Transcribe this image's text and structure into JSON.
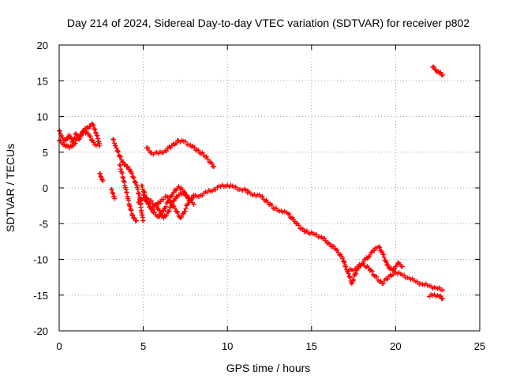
{
  "chart_data": {
    "type": "scatter",
    "title": "Day 214 of 2024, Sidereal Day-to-day VTEC variation (SDTVAR) for receiver p802",
    "xlabel": "GPS time / hours",
    "ylabel": "SDTVAR / TECUs",
    "xlim": [
      0,
      25
    ],
    "ylim": [
      -20,
      20
    ],
    "xticks": [
      0,
      5,
      10,
      15,
      20,
      25
    ],
    "yticks": [
      -20,
      -15,
      -10,
      -5,
      0,
      5,
      10,
      15,
      20
    ],
    "grid": true,
    "marker": "+",
    "color": "#ff0000",
    "series": [
      {
        "name": "main-track",
        "points": [
          [
            0,
            8.0
          ],
          [
            0.2,
            7.0
          ],
          [
            0.4,
            6.6
          ],
          [
            0.6,
            7.4
          ],
          [
            0.8,
            6.4
          ],
          [
            1.0,
            7.6
          ],
          [
            1.2,
            6.8
          ],
          [
            1.4,
            7.9
          ],
          [
            1.6,
            8.3
          ],
          [
            1.8,
            8.6
          ],
          [
            2.0,
            8.9
          ],
          [
            2.2,
            7.6
          ],
          [
            2.4,
            6.2
          ]
        ]
      },
      {
        "name": "track-2",
        "points": [
          [
            0,
            6.6
          ],
          [
            0.3,
            6.1
          ],
          [
            0.6,
            5.6
          ],
          [
            0.9,
            6.2
          ],
          [
            1.2,
            7.2
          ],
          [
            1.5,
            8.0
          ],
          [
            1.8,
            7.3
          ],
          [
            2.1,
            6.1
          ],
          [
            2.4,
            5.9
          ]
        ]
      },
      {
        "name": "segment-2.5",
        "points": [
          [
            2.4,
            2.0
          ],
          [
            2.5,
            1.5
          ],
          [
            2.6,
            1.0
          ]
        ]
      },
      {
        "name": "segment-3",
        "points": [
          [
            3.1,
            -0.2
          ],
          [
            3.2,
            -0.8
          ],
          [
            3.3,
            -1.5
          ]
        ]
      },
      {
        "name": "descent-a",
        "points": [
          [
            3.2,
            6.8
          ],
          [
            3.4,
            5.6
          ],
          [
            3.6,
            4.4
          ],
          [
            3.8,
            3.6
          ],
          [
            4.0,
            3.0
          ],
          [
            4.2,
            2.6
          ],
          [
            4.4,
            1.5
          ],
          [
            4.6,
            0.4
          ],
          [
            4.8,
            -1.5
          ],
          [
            4.9,
            -3.5
          ],
          [
            5.0,
            -4.6
          ]
        ]
      },
      {
        "name": "descent-b",
        "points": [
          [
            3.6,
            3.2
          ],
          [
            3.8,
            1.4
          ],
          [
            4.0,
            -0.6
          ],
          [
            4.2,
            -2.6
          ],
          [
            4.4,
            -4.2
          ],
          [
            4.6,
            -4.6
          ]
        ]
      },
      {
        "name": "osc-1",
        "points": [
          [
            5.0,
            -1.0
          ],
          [
            5.3,
            -2.3
          ],
          [
            5.6,
            -3.4
          ],
          [
            5.9,
            -4.0
          ],
          [
            6.2,
            -3.2
          ],
          [
            6.5,
            -1.8
          ],
          [
            6.8,
            -0.6
          ],
          [
            7.1,
            0.2
          ],
          [
            7.4,
            -0.5
          ],
          [
            7.7,
            -1.5
          ],
          [
            8.0,
            -2.3
          ]
        ]
      },
      {
        "name": "osc-2",
        "points": [
          [
            4.9,
            0.3
          ],
          [
            5.1,
            -1.0
          ],
          [
            5.3,
            -2.2
          ],
          [
            5.5,
            -3.0
          ],
          [
            5.8,
            -2.4
          ],
          [
            6.1,
            -1.6
          ],
          [
            6.4,
            -1.2
          ],
          [
            6.7,
            -2.3
          ],
          [
            7.0,
            -3.3
          ],
          [
            7.2,
            -4.2
          ],
          [
            7.4,
            -3.6
          ],
          [
            7.6,
            -2.4
          ],
          [
            7.8,
            -1.6
          ],
          [
            8.0,
            -1.0
          ]
        ]
      },
      {
        "name": "osc-3",
        "points": [
          [
            4.7,
            -2.0
          ],
          [
            5.0,
            -1.4
          ],
          [
            5.4,
            -1.8
          ],
          [
            5.8,
            -2.6
          ],
          [
            6.2,
            -4.2
          ],
          [
            6.5,
            -3.3
          ],
          [
            6.9,
            -1.5
          ],
          [
            7.2,
            -0.7
          ],
          [
            7.5,
            -1.0
          ],
          [
            7.8,
            -1.6
          ]
        ]
      },
      {
        "name": "upper-arc",
        "points": [
          [
            5.2,
            5.6
          ],
          [
            5.5,
            4.9
          ],
          [
            5.9,
            4.8
          ],
          [
            6.3,
            5.2
          ],
          [
            6.7,
            5.9
          ],
          [
            7.1,
            6.6
          ],
          [
            7.4,
            6.5
          ],
          [
            7.8,
            6.0
          ],
          [
            8.2,
            5.3
          ],
          [
            8.6,
            4.6
          ],
          [
            9.0,
            3.6
          ],
          [
            9.2,
            3.0
          ]
        ]
      },
      {
        "name": "rise",
        "points": [
          [
            8.0,
            -1.3
          ],
          [
            8.4,
            -1.0
          ],
          [
            8.8,
            -0.6
          ],
          [
            9.2,
            -0.2
          ],
          [
            9.6,
            0.2
          ],
          [
            10.0,
            0.4
          ],
          [
            10.4,
            0.1
          ],
          [
            10.8,
            -0.2
          ],
          [
            11.2,
            -0.4
          ]
        ]
      },
      {
        "name": "decline",
        "points": [
          [
            11.2,
            -0.7
          ],
          [
            11.6,
            -0.9
          ],
          [
            12.0,
            -1.2
          ],
          [
            12.4,
            -2.0
          ],
          [
            12.8,
            -2.9
          ],
          [
            13.2,
            -3.2
          ],
          [
            13.6,
            -3.6
          ],
          [
            14.0,
            -4.7
          ],
          [
            14.4,
            -5.7
          ],
          [
            14.8,
            -6.3
          ],
          [
            15.2,
            -6.5
          ],
          [
            15.6,
            -6.9
          ],
          [
            16.0,
            -7.7
          ],
          [
            16.4,
            -8.5
          ],
          [
            16.8,
            -9.6
          ],
          [
            17.0,
            -10.8
          ]
        ]
      },
      {
        "name": "late-a",
        "points": [
          [
            17.0,
            -11.0
          ],
          [
            17.2,
            -12.0
          ],
          [
            17.4,
            -13.4
          ],
          [
            17.6,
            -12.0
          ],
          [
            17.8,
            -11.2
          ],
          [
            18.0,
            -10.6
          ],
          [
            18.2,
            -10.0
          ],
          [
            18.4,
            -9.6
          ],
          [
            18.6,
            -9.0
          ],
          [
            18.8,
            -8.4
          ],
          [
            19.0,
            -8.2
          ],
          [
            19.2,
            -9.0
          ],
          [
            19.4,
            -10.2
          ],
          [
            19.6,
            -11.2
          ],
          [
            19.8,
            -11.5
          ],
          [
            20.0,
            -11.0
          ],
          [
            20.2,
            -10.5
          ],
          [
            20.4,
            -11.0
          ]
        ]
      },
      {
        "name": "late-b",
        "points": [
          [
            17.2,
            -11.6
          ],
          [
            17.6,
            -11.3
          ],
          [
            18.0,
            -10.6
          ],
          [
            18.4,
            -11.2
          ],
          [
            18.8,
            -12.4
          ],
          [
            19.2,
            -13.4
          ],
          [
            19.6,
            -12.4
          ],
          [
            20.0,
            -11.8
          ],
          [
            20.4,
            -12.2
          ],
          [
            20.8,
            -12.6
          ],
          [
            21.2,
            -13.1
          ],
          [
            21.6,
            -13.5
          ],
          [
            22.0,
            -13.7
          ],
          [
            22.4,
            -14.0
          ],
          [
            22.8,
            -14.3
          ]
        ]
      },
      {
        "name": "late-c",
        "points": [
          [
            22.0,
            -15.2
          ],
          [
            22.3,
            -14.9
          ],
          [
            22.6,
            -15.2
          ],
          [
            22.8,
            -15.5
          ]
        ]
      },
      {
        "name": "outlier",
        "points": [
          [
            22.2,
            16.9
          ],
          [
            22.4,
            16.5
          ],
          [
            22.6,
            16.1
          ],
          [
            22.8,
            15.8
          ]
        ]
      }
    ]
  }
}
